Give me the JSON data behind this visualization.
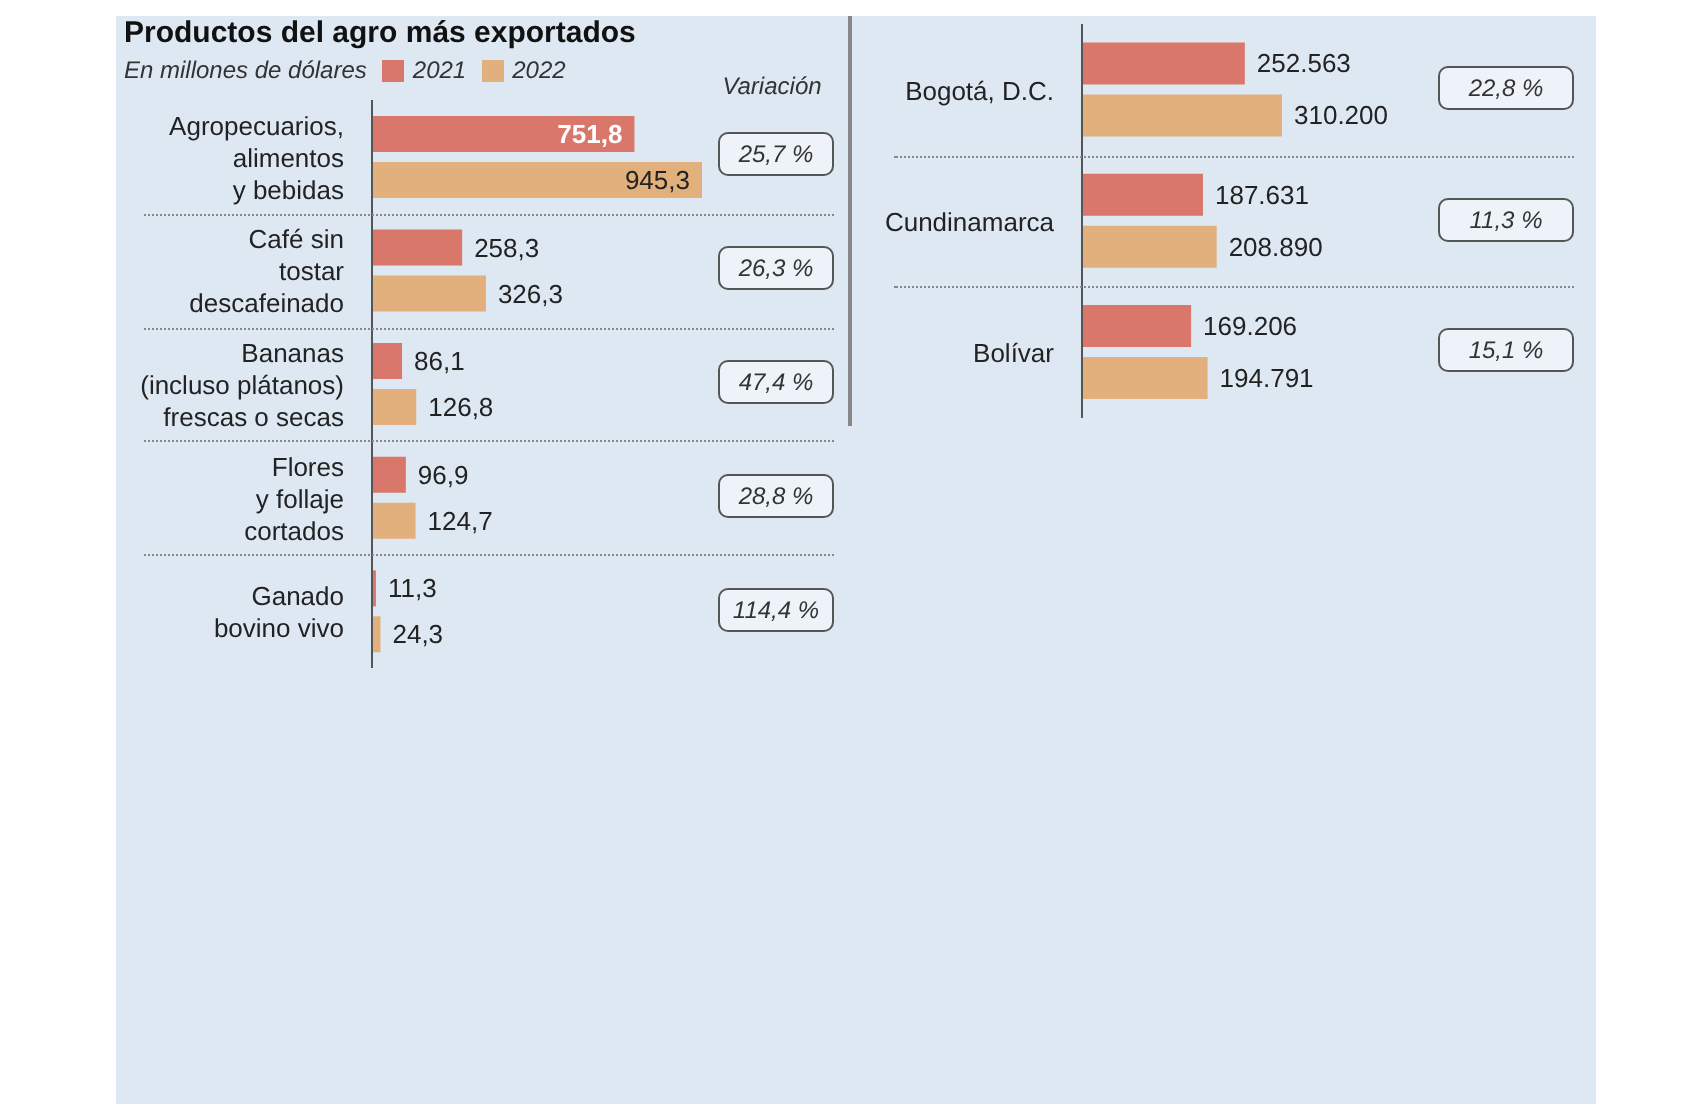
{
  "chart_data": [
    {
      "type": "bar",
      "orientation": "horizontal",
      "title": "Productos del agro más exportados",
      "subtitle": "En millones de dólares",
      "legend": "top left",
      "categories": [
        "Agropecuarios,\nalimentos\ny bebidas",
        "Café sin\ntostar\ndescafeinado",
        "Bananas\n(incluso plátanos)\nfrescas o secas",
        "Flores\ny follaje\ncortados",
        "Ganado\nbovino vivo"
      ],
      "series": [
        {
          "name": "2021",
          "color": "#d9776a",
          "values": [
            751.8,
            258.3,
            86.1,
            96.9,
            11.3
          ],
          "value_labels": [
            "751,8",
            "258,3",
            "86,1",
            "96,9",
            "11,3"
          ]
        },
        {
          "name": "2022",
          "color": "#e2b07c",
          "values": [
            945.3,
            326.3,
            126.8,
            124.7,
            24.3
          ],
          "value_labels": [
            "945,3",
            "326,3",
            "126,8",
            "124,7",
            "24,3"
          ]
        }
      ],
      "annotations": [
        "Variación",
        "25,7 %",
        "26,3 %",
        "47,4 %",
        "28,8 %",
        "114,4 %"
      ]
    },
    {
      "type": "bar",
      "orientation": "horizontal",
      "categories": [
        "Bogotá, D.C.",
        "Cundinamarca",
        "Bolívar"
      ],
      "series": [
        {
          "color": "#d9776a",
          "values": [
            252563,
            187631,
            169206
          ],
          "value_labels": [
            "252.563",
            "187.631",
            "169.206"
          ]
        },
        {
          "color": "#e2b07c",
          "values": [
            310200,
            208890,
            194791
          ],
          "value_labels": [
            "310.200",
            "208.890",
            "194.791"
          ]
        }
      ],
      "annotations": [
        "22,8 %",
        "11,3 %",
        "15,1 %"
      ]
    }
  ]
}
